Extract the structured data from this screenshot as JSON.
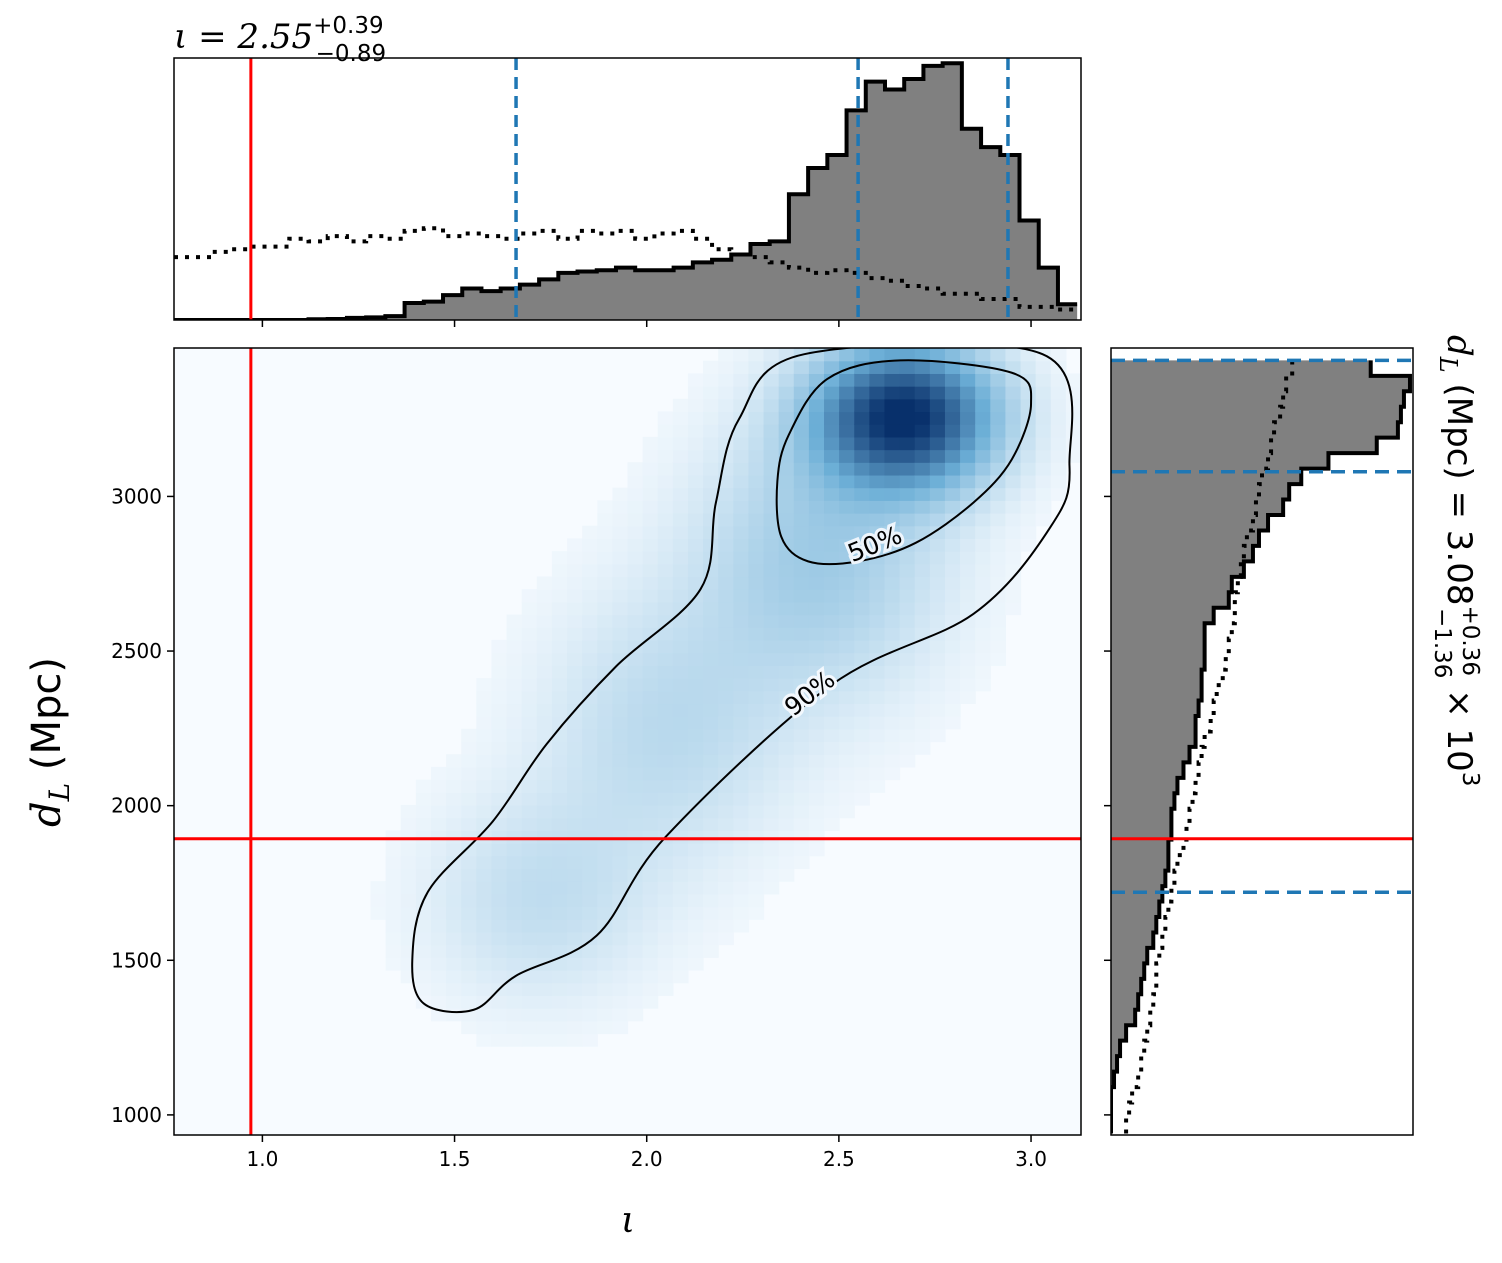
{
  "chart_data": [
    {
      "type": "histogram",
      "panel": "top-marginal",
      "title": {
        "prefix": "ι = 2.55",
        "sup": "+0.39",
        "sub": "−0.89"
      },
      "x_range": [
        0.77,
        3.13
      ],
      "bins_iota": [
        0.77,
        0.82,
        0.87,
        0.92,
        0.97,
        1.02,
        1.07,
        1.12,
        1.17,
        1.22,
        1.27,
        1.32,
        1.37,
        1.42,
        1.47,
        1.52,
        1.57,
        1.62,
        1.67,
        1.72,
        1.77,
        1.82,
        1.87,
        1.92,
        1.97,
        2.02,
        2.07,
        2.12,
        2.17,
        2.22,
        2.27,
        2.32,
        2.37,
        2.42,
        2.47,
        2.52,
        2.57,
        2.62,
        2.67,
        2.72,
        2.77,
        2.82,
        2.87,
        2.92,
        2.97,
        3.02,
        3.07,
        3.12
      ],
      "posterior_density": [
        0.0,
        0.0,
        0.0,
        0.0,
        0.0,
        0.0,
        0.0,
        0.003,
        0.004,
        0.008,
        0.01,
        0.015,
        0.065,
        0.07,
        0.095,
        0.12,
        0.11,
        0.12,
        0.135,
        0.155,
        0.18,
        0.185,
        0.19,
        0.2,
        0.19,
        0.19,
        0.2,
        0.22,
        0.23,
        0.25,
        0.29,
        0.3,
        0.48,
        0.58,
        0.63,
        0.8,
        0.91,
        0.88,
        0.92,
        0.97,
        0.98,
        0.73,
        0.66,
        0.63,
        0.38,
        0.2,
        0.06
      ],
      "prior_density": [
        0.24,
        0.24,
        0.26,
        0.27,
        0.28,
        0.28,
        0.31,
        0.3,
        0.32,
        0.3,
        0.32,
        0.31,
        0.34,
        0.35,
        0.32,
        0.33,
        0.32,
        0.31,
        0.33,
        0.34,
        0.31,
        0.34,
        0.33,
        0.34,
        0.31,
        0.33,
        0.34,
        0.31,
        0.27,
        0.25,
        0.24,
        0.22,
        0.2,
        0.18,
        0.19,
        0.18,
        0.16,
        0.15,
        0.13,
        0.12,
        0.1,
        0.1,
        0.08,
        0.08,
        0.05,
        0.05,
        0.04
      ],
      "credible_lines": [
        1.66,
        2.55,
        2.94
      ],
      "injection": 0.97,
      "colors": {
        "posterior_fill": "#808080",
        "credible": "#1f77b4",
        "injection": "#ff0000"
      }
    },
    {
      "type": "heatmap",
      "panel": "joint",
      "xlabel": "ι",
      "ylabel": {
        "base": "d",
        "sub": "L",
        "rest": " (Mpc)"
      },
      "xlim": [
        0.77,
        3.13
      ],
      "ylim": [
        935,
        3480
      ],
      "xticks": [
        "1.0",
        "1.5",
        "2.0",
        "2.5",
        "3.0"
      ],
      "xtick_values": [
        1.0,
        1.5,
        2.0,
        2.5,
        3.0
      ],
      "yticks": [
        "1000",
        "1500",
        "2000",
        "2500",
        "3000"
      ],
      "ytick_values": [
        1000,
        1500,
        2000,
        2500,
        3000
      ],
      "contour_labels": [
        "50%",
        "90%"
      ],
      "contour_50": [
        [
          2.42,
          2.79
        ],
        [
          2.35,
          2.87
        ],
        [
          2.34,
          3.05
        ],
        [
          2.37,
          3.2
        ],
        [
          2.47,
          3.38
        ],
        [
          2.66,
          3.44
        ],
        [
          2.95,
          3.4
        ],
        [
          3.0,
          3.3
        ],
        [
          2.95,
          3.12
        ],
        [
          2.85,
          2.98
        ],
        [
          2.7,
          2.85
        ],
        [
          2.55,
          2.79
        ]
      ],
      "contour_90": [
        [
          1.42,
          1.36
        ],
        [
          1.39,
          1.5
        ],
        [
          1.43,
          1.72
        ],
        [
          1.6,
          1.95
        ],
        [
          1.74,
          2.2
        ],
        [
          1.92,
          2.45
        ],
        [
          2.14,
          2.7
        ],
        [
          2.18,
          2.98
        ],
        [
          2.24,
          3.25
        ],
        [
          2.41,
          3.46
        ],
        [
          3.03,
          3.46
        ],
        [
          3.1,
          3.1
        ],
        [
          3.05,
          2.9
        ],
        [
          2.85,
          2.62
        ],
        [
          2.48,
          2.39
        ],
        [
          2.05,
          1.9
        ],
        [
          1.87,
          1.58
        ],
        [
          1.66,
          1.45
        ],
        [
          1.55,
          1.34
        ]
      ],
      "heat_blobs": [
        {
          "x": 2.67,
          "y": 3260,
          "sx": 0.16,
          "sy": 160,
          "w": 1.0
        },
        {
          "x": 2.45,
          "y": 2800,
          "sx": 0.22,
          "sy": 300,
          "w": 0.25
        },
        {
          "x": 2.05,
          "y": 2250,
          "sx": 0.22,
          "sy": 300,
          "w": 0.16
        },
        {
          "x": 1.72,
          "y": 1700,
          "sx": 0.2,
          "sy": 230,
          "w": 0.14
        }
      ],
      "injection": {
        "x": 0.97,
        "y": 1893
      },
      "colors": {
        "colormap_low": "#f7fbff",
        "colormap_high": "#08306b",
        "injection": "#ff0000",
        "contour": "#000000"
      }
    },
    {
      "type": "histogram",
      "panel": "right-marginal",
      "label": {
        "base": "d",
        "sub": "L",
        "rest": " (Mpc) = 3.08",
        "sup": "+0.36",
        "sub2": "−1.36",
        "tail": " × 10",
        "exp": "3"
      },
      "y_range": [
        935,
        3480
      ],
      "bins_dl": [
        940,
        990,
        1040,
        1090,
        1140,
        1190,
        1240,
        1290,
        1340,
        1390,
        1440,
        1490,
        1540,
        1590,
        1640,
        1690,
        1740,
        1790,
        1840,
        1890,
        1940,
        1990,
        2040,
        2090,
        2140,
        2190,
        2240,
        2290,
        2340,
        2390,
        2440,
        2490,
        2540,
        2590,
        2640,
        2690,
        2740,
        2790,
        2840,
        2890,
        2940,
        2990,
        3040,
        3090,
        3140,
        3190,
        3240,
        3290,
        3340,
        3390,
        3440
      ],
      "posterior_density": [
        0.0,
        0.0,
        0.0,
        0.01,
        0.02,
        0.03,
        0.05,
        0.08,
        0.09,
        0.1,
        0.11,
        0.12,
        0.14,
        0.15,
        0.16,
        0.17,
        0.18,
        0.19,
        0.19,
        0.2,
        0.2,
        0.21,
        0.22,
        0.24,
        0.26,
        0.28,
        0.28,
        0.29,
        0.3,
        0.3,
        0.31,
        0.31,
        0.31,
        0.34,
        0.39,
        0.4,
        0.44,
        0.47,
        0.49,
        0.52,
        0.57,
        0.59,
        0.63,
        0.72,
        0.88,
        0.95,
        0.96,
        0.97,
        0.99,
        0.86
      ],
      "prior_density": [
        0.05,
        0.06,
        0.07,
        0.09,
        0.1,
        0.11,
        0.12,
        0.13,
        0.14,
        0.15,
        0.15,
        0.16,
        0.17,
        0.18,
        0.19,
        0.2,
        0.21,
        0.22,
        0.24,
        0.25,
        0.26,
        0.27,
        0.28,
        0.29,
        0.3,
        0.31,
        0.33,
        0.34,
        0.35,
        0.37,
        0.38,
        0.39,
        0.4,
        0.41,
        0.41,
        0.42,
        0.43,
        0.44,
        0.45,
        0.47,
        0.48,
        0.49,
        0.5,
        0.52,
        0.53,
        0.54,
        0.56,
        0.57,
        0.58,
        0.6
      ],
      "credible_lines": [
        1720,
        3080,
        3440
      ],
      "injection": 1893,
      "colors": {
        "posterior_fill": "#808080",
        "credible": "#1f77b4",
        "injection": "#ff0000"
      }
    }
  ]
}
